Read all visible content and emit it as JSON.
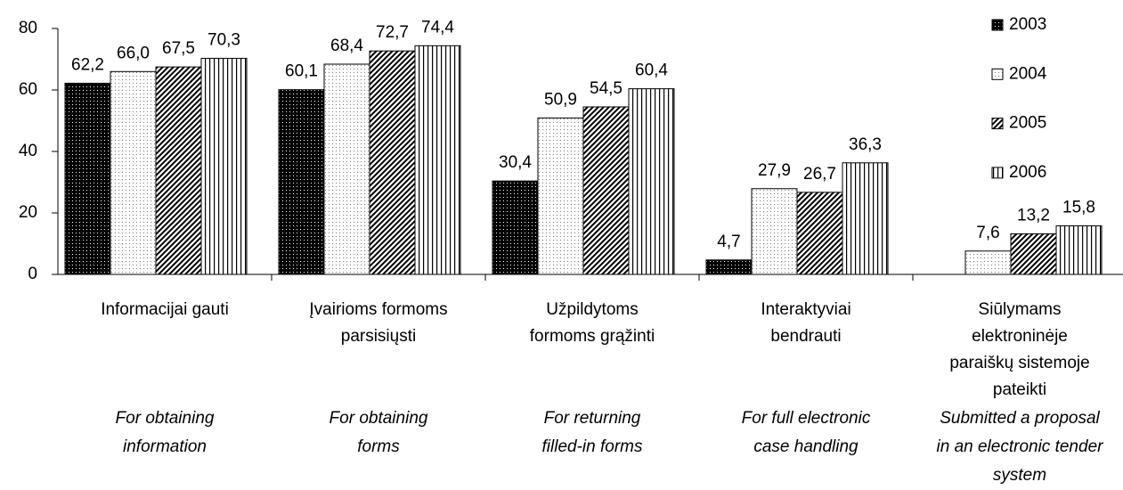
{
  "chart_data": {
    "type": "bar",
    "categories": [
      [
        "Informacijai gauti"
      ],
      [
        "Įvairioms formoms",
        "parsisiųsti"
      ],
      [
        "Užpildytoms",
        "formoms grąžinti"
      ],
      [
        "Interaktyviai",
        "bendrauti"
      ],
      [
        "Siūlymams",
        "elektroninėje",
        "paraiškų sistemoje",
        "pateikti"
      ]
    ],
    "categories_en": [
      [
        "For obtaining",
        "information"
      ],
      [
        "For obtaining",
        "forms"
      ],
      [
        "For returning",
        "filled-in forms"
      ],
      [
        "For full electronic",
        "case handling"
      ],
      [
        "Submitted a proposal",
        "in an electronic tender",
        "system"
      ]
    ],
    "series": [
      {
        "name": "2003",
        "color": "#000000",
        "pattern": "dots-dark",
        "values": [
          62.2,
          60.1,
          30.4,
          4.7,
          null
        ],
        "value_labels": [
          "62,2",
          "60,1",
          "30,4",
          "4,7",
          null
        ]
      },
      {
        "name": "2004",
        "color": "#ffffff",
        "pattern": "dots-light",
        "values": [
          66.0,
          68.4,
          50.9,
          27.9,
          7.6
        ],
        "value_labels": [
          "66,0",
          "68,4",
          "50,9",
          "27,9",
          "7,6"
        ]
      },
      {
        "name": "2005",
        "color": "#ffffff",
        "pattern": "diagonal",
        "values": [
          67.5,
          72.7,
          54.5,
          26.7,
          13.2
        ],
        "value_labels": [
          "67,5",
          "72,7",
          "54,5",
          "26,7",
          "13,2"
        ]
      },
      {
        "name": "2006",
        "color": "#ffffff",
        "pattern": "vertical",
        "values": [
          70.3,
          74.4,
          60.4,
          36.3,
          15.8
        ],
        "value_labels": [
          "70,3",
          "74,4",
          "60,4",
          "36,3",
          "15,8"
        ]
      }
    ],
    "ylim": [
      0,
      80
    ],
    "yticks": [
      0,
      20,
      40,
      60,
      80
    ],
    "legend": "right"
  }
}
